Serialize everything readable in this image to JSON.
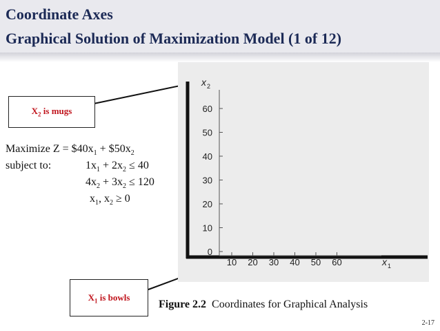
{
  "header": {
    "title": "Coordinate Axes",
    "subtitle": "Graphical Solution of Maximization Model (1 of 12)"
  },
  "callouts": {
    "x2": {
      "var": "X",
      "sub": "2",
      "text": " is mugs"
    },
    "x1": {
      "var": "X",
      "sub": "1",
      "text": " is bowls"
    }
  },
  "model": {
    "objective": {
      "prefix": "Maximize Z = $40x",
      "s1": "1",
      "mid": " + $50x",
      "s2": "2"
    },
    "subject_label": "subject to:",
    "c1": {
      "a": "1x",
      "s1": "1",
      "b": " + 2x",
      "s2": "2",
      "rel": " ≤ 40"
    },
    "c2": {
      "a": "4x",
      "s1": "2",
      "b": " + 3x",
      "s2": "2",
      "rel": " ≤ 120"
    },
    "c3": {
      "a": "x",
      "s1": "1",
      "b": ", x",
      "s2": "2",
      "rel": " ≥ 0"
    }
  },
  "chart_data": {
    "type": "line",
    "title": "",
    "xlabel": "x",
    "xlabel_sub": "1",
    "ylabel": "x",
    "ylabel_sub": "2",
    "x_ticks": [
      10,
      20,
      30,
      40,
      50,
      60
    ],
    "y_ticks": [
      0,
      10,
      20,
      30,
      40,
      50,
      60
    ],
    "xlim": [
      0,
      70
    ],
    "ylim": [
      0,
      70
    ],
    "grid": false,
    "series": []
  },
  "figure": {
    "label": "Figure 2.2",
    "caption": "Coordinates for Graphical Analysis"
  },
  "page": {
    "number": "2-17"
  },
  "colors": {
    "title": "#1c2a56",
    "callout_text": "#c0141c",
    "graph_bg": "#ececec"
  }
}
